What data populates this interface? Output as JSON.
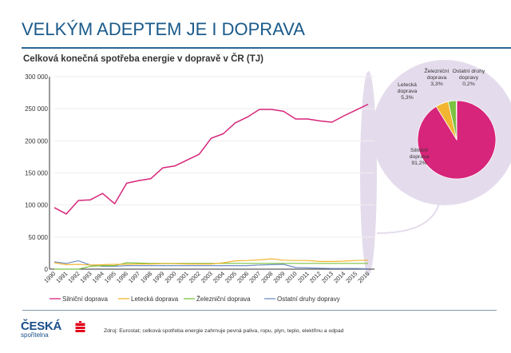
{
  "header": {
    "title": "VELKÝM ADEPTEM JE I DOPRAVA",
    "subtitle": "Celková konečná spotřeba energie v dopravě v ČR (TJ)"
  },
  "footer": {
    "logo_top": "ČESKÁ",
    "logo_bottom": "spořitelna",
    "logo_icon": "ceska-sporitelna-s-icon",
    "source": "Zdroj: Eurostat; celková spotřeba energie zahrnuje pevná paliva, ropu, plyn, teplo, elektřinu a odpad"
  },
  "colors": {
    "title": "#1a5a8a",
    "highlight": "#e4dcec",
    "road": "#d6257a",
    "air": "#f2b531",
    "rail": "#7cc242",
    "other": "#6f8fc4"
  },
  "chart_data": [
    {
      "type": "line",
      "title": "Celková konečná spotřeba energie v dopravě v ČR (TJ)",
      "xlabel": "",
      "ylabel": "",
      "ylim": [
        0,
        300000
      ],
      "yticks": [
        0,
        50000,
        100000,
        150000,
        200000,
        250000,
        300000
      ],
      "ytick_labels": [
        "0",
        "50 000",
        "100 000",
        "150 000",
        "200 000",
        "250 000",
        "300 000"
      ],
      "grid": true,
      "legend": "bottom",
      "x": [
        "1990",
        "1991",
        "1992",
        "1993",
        "1994",
        "1995",
        "1996",
        "1997",
        "1998",
        "1999",
        "2000",
        "2001",
        "2002",
        "2003",
        "2004",
        "2005",
        "2006",
        "2007",
        "2008",
        "2009",
        "2010",
        "2011",
        "2012",
        "2013",
        "2014",
        "2015",
        "2016"
      ],
      "series": [
        {
          "name": "Silniční doprava",
          "color": "#d6257a",
          "values": [
            96000,
            86000,
            107000,
            108000,
            118000,
            102000,
            134000,
            138000,
            141000,
            158000,
            161000,
            170000,
            179000,
            204000,
            211000,
            228000,
            237000,
            249000,
            249000,
            246000,
            234000,
            234000,
            231000,
            229000,
            239000,
            248000,
            257000
          ]
        },
        {
          "name": "Letecká doprava",
          "color": "#f2b531",
          "values": [
            10000,
            7000,
            7500,
            6500,
            7000,
            7500,
            7500,
            8000,
            8000,
            8500,
            8500,
            8000,
            8000,
            8000,
            10000,
            13000,
            13500,
            14500,
            16000,
            14000,
            13500,
            13500,
            12000,
            12000,
            12500,
            13500,
            14000
          ]
        },
        {
          "name": "Železniční doprava",
          "color": "#7cc242",
          "values": [
            0,
            0,
            0,
            4500,
            5500,
            5500,
            10000,
            9500,
            9000,
            9000,
            9000,
            9000,
            9000,
            9000,
            9000,
            9000,
            9000,
            9000,
            9000,
            9000,
            9000,
            9000,
            9000,
            9000,
            9000,
            9000,
            9000
          ]
        },
        {
          "name": "Ostatní druhy dopravy",
          "color": "#6f8fc4",
          "values": [
            11500,
            9000,
            13000,
            6500,
            4500,
            4500,
            5500,
            5500,
            5500,
            5500,
            5500,
            5500,
            5500,
            5500,
            5500,
            5500,
            5500,
            6500,
            7000,
            7500,
            2500,
            2000,
            1500,
            1000,
            1000,
            1000,
            600
          ]
        }
      ]
    },
    {
      "type": "pie",
      "title": "",
      "year": "2016",
      "slices": [
        {
          "name": "Silniční doprava",
          "label": "Silniční\ndoprava\n91,2%",
          "value": 91.2,
          "color": "#d6257a"
        },
        {
          "name": "Letecká doprava",
          "label": "Letecká\ndoprava\n5,3%",
          "value": 5.3,
          "color": "#f2b531"
        },
        {
          "name": "Železniční doprava",
          "label": "Železniční\ndoprava\n3,3%",
          "value": 3.3,
          "color": "#7cc242"
        },
        {
          "name": "Ostatní druhy dopravy",
          "label": "Ostatní druhy\ndopravy\n0,2%",
          "value": 0.2,
          "color": "#6f8fc4"
        }
      ]
    }
  ]
}
